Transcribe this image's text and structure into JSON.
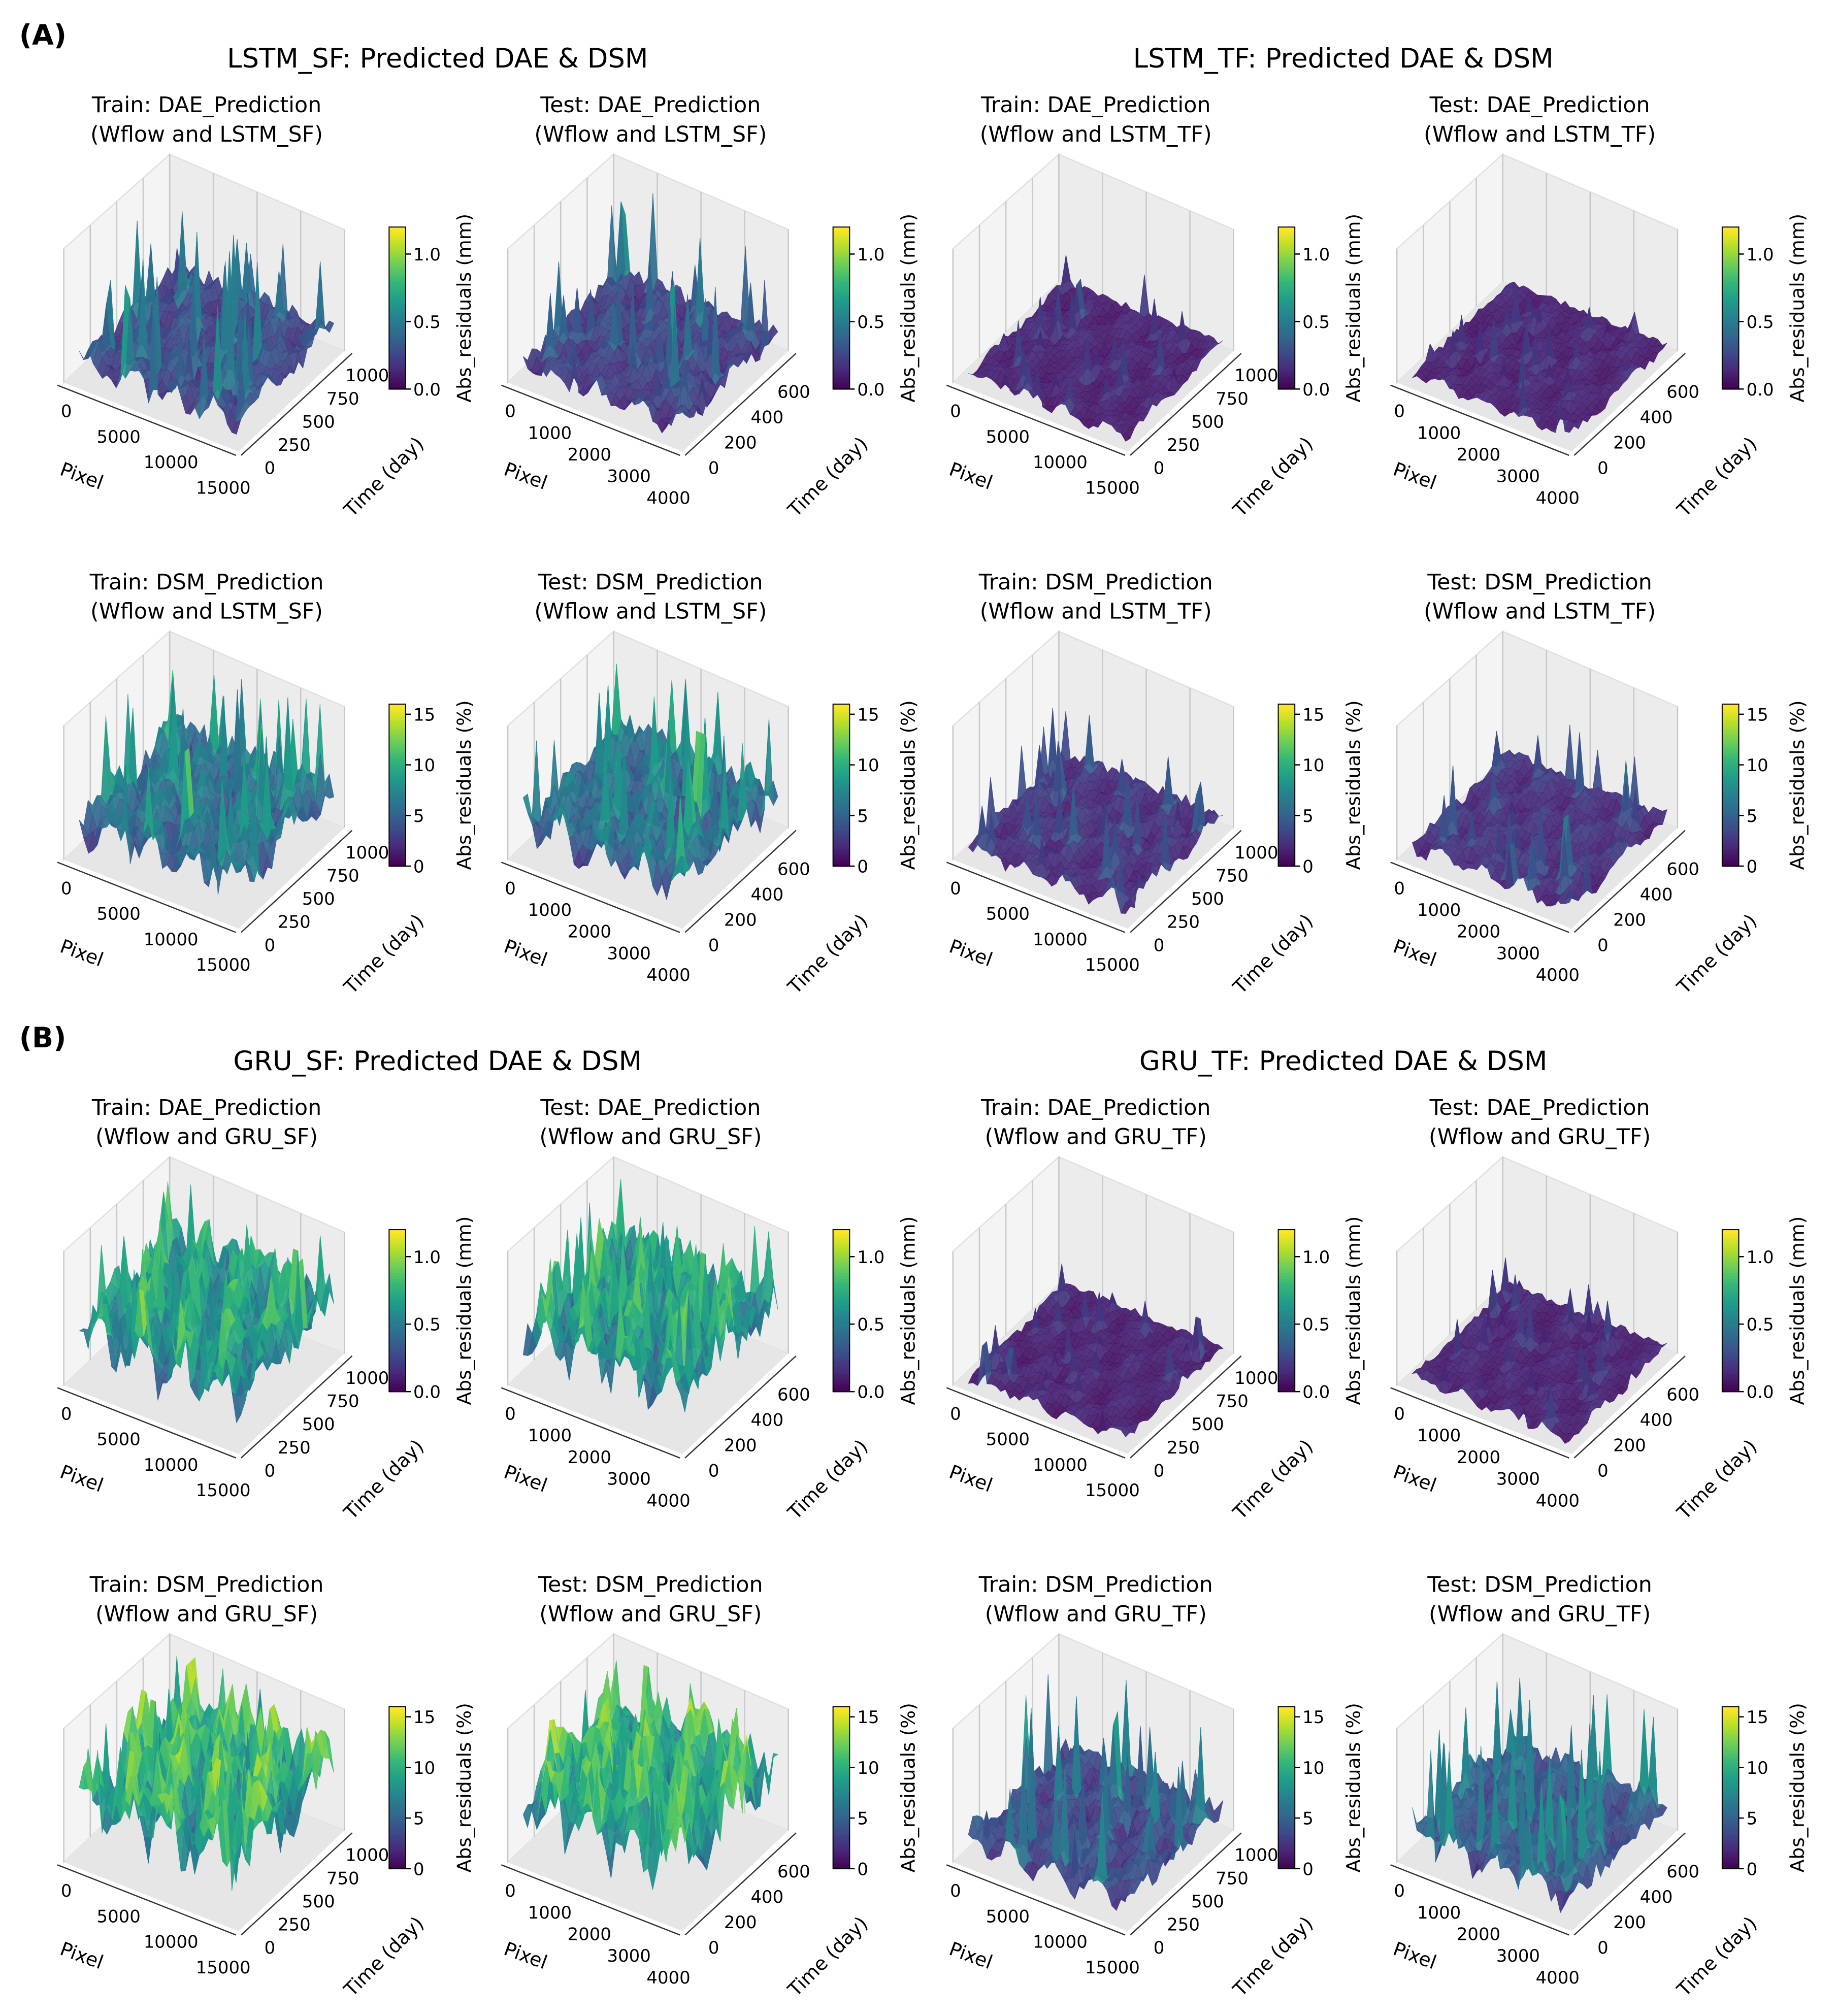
{
  "chart_data": {
    "type": "surface3d",
    "sections": [
      {
        "label": "(A)",
        "groups": [
          {
            "title": "LSTM_SF: Predicted DAE & DSM",
            "panels": [
              {
                "title1": "Train: DAE_Prediction",
                "title2": "(Wflow and LSTM_SF)",
                "xlabel": "Pixel",
                "ylabel": "Time (day)",
                "xticks": [
                  "0",
                  "5000",
                  "10000",
                  "15000"
                ],
                "yticks": [
                  "0",
                  "250",
                  "500",
                  "750",
                  "1000"
                ],
                "cbar_label": "Abs_residuals (mm)",
                "cbar_ticks": [
                  "0.0",
                  "0.5",
                  "1.0"
                ],
                "cbar_range": [
                  0,
                  1.2
                ],
                "typical_value": 0.3
              },
              {
                "title1": "Test: DAE_Prediction",
                "title2": "(Wflow and LSTM_SF)",
                "xlabel": "Pixel",
                "ylabel": "Time (day)",
                "xticks": [
                  "0",
                  "1000",
                  "2000",
                  "3000",
                  "4000"
                ],
                "yticks": [
                  "0",
                  "200",
                  "400",
                  "600"
                ],
                "cbar_label": "Abs_residuals (mm)",
                "cbar_ticks": [
                  "0.0",
                  "0.5",
                  "1.0"
                ],
                "cbar_range": [
                  0,
                  1.2
                ],
                "typical_value": 0.25
              },
              {
                "title1": "Train: DSM_Prediction",
                "title2": "(Wflow and LSTM_SF)",
                "xlabel": "Pixel",
                "ylabel": "Time (day)",
                "xticks": [
                  "0",
                  "5000",
                  "10000",
                  "15000"
                ],
                "yticks": [
                  "0",
                  "250",
                  "500",
                  "750",
                  "1000"
                ],
                "cbar_label": "Abs_residuals (%)",
                "cbar_ticks": [
                  "0",
                  "5",
                  "10",
                  "15"
                ],
                "cbar_range": [
                  0,
                  16
                ],
                "typical_value": 6.5
              },
              {
                "title1": "Test: DSM_Prediction",
                "title2": "(Wflow and LSTM_SF)",
                "xlabel": "Pixel",
                "ylabel": "Time (day)",
                "xticks": [
                  "0",
                  "1000",
                  "2000",
                  "3000",
                  "4000"
                ],
                "yticks": [
                  "0",
                  "200",
                  "400",
                  "600"
                ],
                "cbar_label": "Abs_residuals (%)",
                "cbar_ticks": [
                  "0",
                  "5",
                  "10",
                  "15"
                ],
                "cbar_range": [
                  0,
                  16
                ],
                "typical_value": 6.5
              }
            ]
          },
          {
            "title": "LSTM_TF: Predicted DAE & DSM",
            "panels": [
              {
                "title1": "Train: DAE_Prediction",
                "title2": "(Wflow and LSTM_TF)",
                "xlabel": "Pixel",
                "ylabel": "Time (day)",
                "xticks": [
                  "0",
                  "5000",
                  "10000",
                  "15000"
                ],
                "yticks": [
                  "0",
                  "250",
                  "500",
                  "750",
                  "1000"
                ],
                "cbar_label": "Abs_residuals (mm)",
                "cbar_ticks": [
                  "0.0",
                  "0.5",
                  "1.0"
                ],
                "cbar_range": [
                  0,
                  1.2
                ],
                "typical_value": 0.12
              },
              {
                "title1": "Test: DAE_Prediction",
                "title2": "(Wflow and LSTM_TF)",
                "xlabel": "Pixel",
                "ylabel": "Time (day)",
                "xticks": [
                  "0",
                  "1000",
                  "2000",
                  "3000",
                  "4000"
                ],
                "yticks": [
                  "0",
                  "200",
                  "400",
                  "600"
                ],
                "cbar_label": "Abs_residuals (mm)",
                "cbar_ticks": [
                  "0.0",
                  "0.5",
                  "1.0"
                ],
                "cbar_range": [
                  0,
                  1.2
                ],
                "typical_value": 0.12
              },
              {
                "title1": "Train: DSM_Prediction",
                "title2": "(Wflow and LSTM_TF)",
                "xlabel": "Pixel",
                "ylabel": "Time (day)",
                "xticks": [
                  "0",
                  "5000",
                  "10000",
                  "15000"
                ],
                "yticks": [
                  "0",
                  "250",
                  "500",
                  "750",
                  "1000"
                ],
                "cbar_label": "Abs_residuals (%)",
                "cbar_ticks": [
                  "0",
                  "5",
                  "10",
                  "15"
                ],
                "cbar_range": [
                  0,
                  16
                ],
                "typical_value": 2.5
              },
              {
                "title1": "Test: DSM_Prediction",
                "title2": "(Wflow and LSTM_TF)",
                "xlabel": "Pixel",
                "ylabel": "Time (day)",
                "xticks": [
                  "0",
                  "1000",
                  "2000",
                  "3000",
                  "4000"
                ],
                "yticks": [
                  "0",
                  "200",
                  "400",
                  "600"
                ],
                "cbar_label": "Abs_residuals (%)",
                "cbar_ticks": [
                  "0",
                  "5",
                  "10",
                  "15"
                ],
                "cbar_range": [
                  0,
                  16
                ],
                "typical_value": 2.5
              }
            ]
          }
        ]
      },
      {
        "label": "(B)",
        "groups": [
          {
            "title": "GRU_SF: Predicted DAE & DSM",
            "panels": [
              {
                "title1": "Train: DAE_Prediction",
                "title2": "(Wflow and GRU_SF)",
                "xlabel": "Pixel",
                "ylabel": "Time (day)",
                "xticks": [
                  "0",
                  "5000",
                  "10000",
                  "15000"
                ],
                "yticks": [
                  "0",
                  "250",
                  "500",
                  "750",
                  "1000"
                ],
                "cbar_label": "Abs_residuals (mm)",
                "cbar_ticks": [
                  "0.0",
                  "0.5",
                  "1.0"
                ],
                "cbar_range": [
                  0,
                  1.2
                ],
                "typical_value": 0.7
              },
              {
                "title1": "Test: DAE_Prediction",
                "title2": "(Wflow and GRU_SF)",
                "xlabel": "Pixel",
                "ylabel": "Time (day)",
                "xticks": [
                  "0",
                  "1000",
                  "2000",
                  "3000",
                  "4000"
                ],
                "yticks": [
                  "0",
                  "200",
                  "400",
                  "600"
                ],
                "cbar_label": "Abs_residuals (mm)",
                "cbar_ticks": [
                  "0.0",
                  "0.5",
                  "1.0"
                ],
                "cbar_range": [
                  0,
                  1.2
                ],
                "typical_value": 0.7
              },
              {
                "title1": "Train: DSM_Prediction",
                "title2": "(Wflow and GRU_SF)",
                "xlabel": "Pixel",
                "ylabel": "Time (day)",
                "xticks": [
                  "0",
                  "5000",
                  "10000",
                  "15000"
                ],
                "yticks": [
                  "0",
                  "250",
                  "500",
                  "750",
                  "1000"
                ],
                "cbar_label": "Abs_residuals (%)",
                "cbar_ticks": [
                  "0",
                  "5",
                  "10",
                  "15"
                ],
                "cbar_range": [
                  0,
                  16
                ],
                "typical_value": 11
              },
              {
                "title1": "Test: DSM_Prediction",
                "title2": "(Wflow and GRU_SF)",
                "xlabel": "Pixel",
                "ylabel": "Time (day)",
                "xticks": [
                  "0",
                  "1000",
                  "2000",
                  "3000",
                  "4000"
                ],
                "yticks": [
                  "0",
                  "200",
                  "400",
                  "600"
                ],
                "cbar_label": "Abs_residuals (%)",
                "cbar_ticks": [
                  "0",
                  "5",
                  "10",
                  "15"
                ],
                "cbar_range": [
                  0,
                  16
                ],
                "typical_value": 11
              }
            ]
          },
          {
            "title": "GRU_TF: Predicted DAE & DSM",
            "panels": [
              {
                "title1": "Train: DAE_Prediction",
                "title2": "(Wflow and GRU_TF)",
                "xlabel": "Pixel",
                "ylabel": "Time (day)",
                "xticks": [
                  "0",
                  "5000",
                  "10000",
                  "15000"
                ],
                "yticks": [
                  "0",
                  "250",
                  "500",
                  "750",
                  "1000"
                ],
                "cbar_label": "Abs_residuals (mm)",
                "cbar_ticks": [
                  "0.0",
                  "0.5",
                  "1.0"
                ],
                "cbar_range": [
                  0,
                  1.2
                ],
                "typical_value": 0.12
              },
              {
                "title1": "Test: DAE_Prediction",
                "title2": "(Wflow and GRU_TF)",
                "xlabel": "Pixel",
                "ylabel": "Time (day)",
                "xticks": [
                  "0",
                  "1000",
                  "2000",
                  "3000",
                  "4000"
                ],
                "yticks": [
                  "0",
                  "200",
                  "400",
                  "600"
                ],
                "cbar_label": "Abs_residuals (mm)",
                "cbar_ticks": [
                  "0.0",
                  "0.5",
                  "1.0"
                ],
                "cbar_range": [
                  0,
                  1.2
                ],
                "typical_value": 0.12
              },
              {
                "title1": "Train: DSM_Prediction",
                "title2": "(Wflow and GRU_TF)",
                "xlabel": "Pixel",
                "ylabel": "Time (day)",
                "xticks": [
                  "0",
                  "5000",
                  "10000",
                  "15000"
                ],
                "yticks": [
                  "0",
                  "250",
                  "500",
                  "750",
                  "1000"
                ],
                "cbar_label": "Abs_residuals (%)",
                "cbar_ticks": [
                  "0",
                  "5",
                  "10",
                  "15"
                ],
                "cbar_range": [
                  0,
                  16
                ],
                "typical_value": 4
              },
              {
                "title1": "Test: DSM_Prediction",
                "title2": "(Wflow and GRU_TF)",
                "xlabel": "Pixel",
                "ylabel": "Time (day)",
                "xticks": [
                  "0",
                  "1000",
                  "2000",
                  "3000",
                  "4000"
                ],
                "yticks": [
                  "0",
                  "200",
                  "400",
                  "600"
                ],
                "cbar_label": "Abs_residuals (%)",
                "cbar_ticks": [
                  "0",
                  "5",
                  "10",
                  "15"
                ],
                "cbar_range": [
                  0,
                  16
                ],
                "typical_value": 5
              }
            ]
          }
        ]
      }
    ],
    "colormap": [
      "#440154",
      "#482878",
      "#3e4a89",
      "#31688e",
      "#26828e",
      "#1f9e89",
      "#35b779",
      "#6ece58",
      "#b5de2b",
      "#fde725"
    ]
  }
}
